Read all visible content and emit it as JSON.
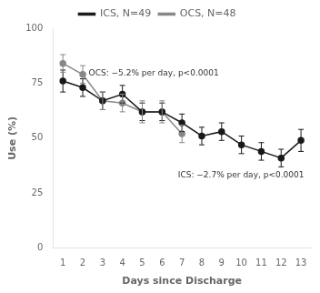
{
  "chart_data": {
    "type": "line",
    "xlabel": "Days since Discharge",
    "ylabel": "Use (%)",
    "xlim": [
      0.5,
      13.5
    ],
    "xticks": [
      1,
      2,
      3,
      4,
      5,
      6,
      7,
      8,
      9,
      10,
      11,
      12,
      13
    ],
    "ylim": [
      0,
      100
    ],
    "yticks": [
      0,
      25,
      50,
      75,
      100
    ],
    "grid": false,
    "legend": "top",
    "series": [
      {
        "name": "ICS, N=49",
        "color": "#1a1a1a",
        "marker": "circle",
        "line_style": "solid",
        "x": [
          1,
          2,
          3,
          4,
          5,
          6,
          7,
          8,
          9,
          10,
          11,
          12,
          13
        ],
        "values": [
          76,
          73,
          67,
          70,
          62,
          62,
          57,
          51,
          53,
          47,
          44,
          41,
          49
        ],
        "errors": [
          5,
          4,
          4,
          4,
          4,
          4,
          4,
          4,
          4,
          4,
          4,
          4,
          5
        ]
      },
      {
        "name": "OCS, N=48",
        "color": "#888888",
        "marker": "circle",
        "line_style": "solid",
        "x": [
          1,
          2,
          3,
          4,
          5,
          6,
          7
        ],
        "values": [
          84,
          79,
          67,
          66,
          62,
          62,
          52
        ],
        "errors": [
          4,
          4,
          4,
          4,
          5,
          5,
          4
        ]
      }
    ],
    "annotations": [
      {
        "text": "OCS: −5.2% per day, p<0.0001",
        "x": 2.3,
        "y": 79.5
      },
      {
        "text": "ICS: −2.7% per day, p<0.0001",
        "x": 6.8,
        "y": 33
      }
    ]
  }
}
